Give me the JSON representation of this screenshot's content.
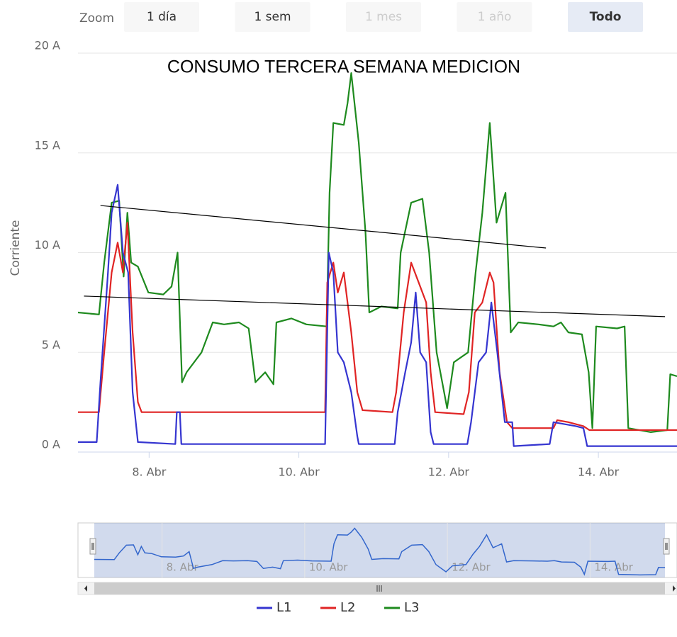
{
  "chart_data": {
    "type": "line",
    "title": "CONSUMO TERCERA SEMANA MEDICION",
    "y_label": "Corriente",
    "xlim": [
      7.05,
      15.05
    ],
    "ylim": [
      0,
      20
    ],
    "xticks": [
      {
        "value": 8,
        "label": "8. Abr"
      },
      {
        "value": 10,
        "label": "10. Abr"
      },
      {
        "value": 12,
        "label": "12. Abr"
      },
      {
        "value": 14,
        "label": "14. Abr"
      }
    ],
    "yticks": [
      {
        "value": 0,
        "label": "0 A"
      },
      {
        "value": 5,
        "label": "5 A"
      },
      {
        "value": 10,
        "label": "10 A"
      },
      {
        "value": 15,
        "label": "15 A"
      },
      {
        "value": 20,
        "label": "20 A"
      }
    ],
    "grid": true,
    "range_selector": {
      "label": "Zoom",
      "buttons": [
        "1 día",
        "1 sem",
        "1 mes",
        "1 año",
        "Todo"
      ],
      "selected": 4,
      "disabled": [
        2,
        3
      ]
    },
    "series": [
      {
        "name": "L1",
        "color": "#3535d0",
        "x": [
          7.05,
          7.3,
          7.35,
          7.45,
          7.5,
          7.58,
          7.65,
          7.72,
          7.78,
          7.85,
          8.35,
          8.37,
          8.41,
          8.43,
          10.35,
          10.4,
          10.46,
          10.52,
          10.6,
          10.7,
          10.78,
          10.8,
          11.28,
          11.32,
          11.42,
          11.5,
          11.56,
          11.62,
          11.7,
          11.76,
          11.8,
          12.25,
          12.3,
          12.4,
          12.5,
          12.57,
          12.65,
          12.75,
          12.85,
          12.87,
          13.35,
          13.4,
          13.7,
          13.8,
          13.85,
          15.05
        ],
        "values": [
          0.5,
          0.5,
          3.5,
          9.0,
          12.0,
          13.4,
          10.0,
          9.0,
          3.0,
          0.5,
          0.4,
          2.0,
          2.0,
          0.4,
          0.4,
          10.0,
          9.0,
          5.0,
          4.5,
          3.0,
          0.8,
          0.4,
          0.4,
          2.0,
          4.0,
          5.5,
          8.0,
          5.0,
          4.5,
          1.0,
          0.4,
          0.4,
          1.5,
          4.5,
          5.0,
          7.5,
          5.0,
          1.5,
          1.5,
          0.3,
          0.4,
          1.5,
          1.3,
          1.2,
          0.3,
          0.3
        ]
      },
      {
        "name": "L2",
        "color": "#e02424",
        "x": [
          7.05,
          7.33,
          7.4,
          7.5,
          7.58,
          7.65,
          7.71,
          7.78,
          7.85,
          7.9,
          8.5,
          9.0,
          9.5,
          10.0,
          10.35,
          10.38,
          10.46,
          10.52,
          10.6,
          10.7,
          10.78,
          10.85,
          11.25,
          11.3,
          11.4,
          11.5,
          11.6,
          11.7,
          11.76,
          11.82,
          12.2,
          12.27,
          12.35,
          12.45,
          12.55,
          12.6,
          12.68,
          12.78,
          12.85,
          13.4,
          13.45,
          13.6,
          13.8,
          13.88,
          15.05
        ],
        "values": [
          2.0,
          2.0,
          5.0,
          9.0,
          10.5,
          9.0,
          11.5,
          6.0,
          2.5,
          2.0,
          2.0,
          2.0,
          2.0,
          2.0,
          2.0,
          8.5,
          9.5,
          8.0,
          9.0,
          6.0,
          3.0,
          2.1,
          2.0,
          3.0,
          7.0,
          9.5,
          8.5,
          7.5,
          4.0,
          2.0,
          1.9,
          3.0,
          7.0,
          7.5,
          9.0,
          8.5,
          4.0,
          1.5,
          1.2,
          1.2,
          1.6,
          1.5,
          1.3,
          1.1,
          1.1
        ]
      },
      {
        "name": "L3",
        "color": "#1e8a1e",
        "x": [
          7.05,
          7.33,
          7.4,
          7.5,
          7.6,
          7.66,
          7.71,
          7.76,
          7.85,
          7.99,
          8.19,
          8.3,
          8.38,
          8.44,
          8.5,
          8.7,
          8.85,
          9.0,
          9.2,
          9.33,
          9.42,
          9.55,
          9.66,
          9.7,
          9.9,
          10.1,
          10.37,
          10.41,
          10.46,
          10.6,
          10.65,
          10.7,
          10.8,
          10.89,
          10.94,
          11.1,
          11.32,
          11.36,
          11.5,
          11.65,
          11.74,
          11.84,
          11.98,
          12.07,
          12.26,
          12.36,
          12.45,
          12.55,
          12.64,
          12.76,
          12.83,
          12.93,
          13.2,
          13.4,
          13.5,
          13.6,
          13.78,
          13.87,
          13.92,
          13.97,
          14.25,
          14.35,
          14.4,
          14.7,
          14.92,
          14.96,
          15.05
        ],
        "values": [
          7.0,
          6.9,
          9.5,
          12.5,
          12.6,
          8.8,
          12.0,
          9.5,
          9.3,
          8.0,
          7.9,
          8.3,
          10.0,
          3.5,
          4.0,
          5.0,
          6.5,
          6.4,
          6.5,
          6.2,
          3.5,
          4.0,
          3.4,
          6.5,
          6.7,
          6.4,
          6.3,
          13.0,
          16.5,
          16.4,
          17.5,
          19.0,
          15.5,
          11.0,
          7.0,
          7.3,
          7.2,
          10.0,
          12.5,
          12.7,
          10.0,
          5.0,
          2.2,
          4.5,
          5.0,
          9.0,
          12.0,
          16.5,
          11.5,
          13.0,
          6.0,
          6.5,
          6.4,
          6.3,
          6.5,
          6.0,
          5.9,
          4.0,
          1.2,
          6.3,
          6.2,
          6.3,
          1.2,
          1.0,
          1.1,
          3.9,
          3.8
        ]
      }
    ],
    "trend_lines": [
      {
        "x": [
          7.35,
          13.3
        ],
        "y": [
          12.36,
          10.23
        ]
      },
      {
        "x": [
          7.13,
          14.89
        ],
        "y": [
          7.82,
          6.79
        ]
      }
    ]
  }
}
